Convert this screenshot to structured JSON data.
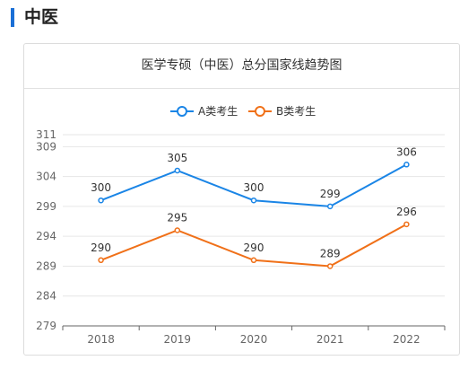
{
  "section": {
    "title": "中医"
  },
  "chart_data": {
    "type": "line",
    "title": "医学专硕（中医）总分国家线趋势图",
    "categories": [
      "2018",
      "2019",
      "2020",
      "2021",
      "2022"
    ],
    "series": [
      {
        "name": "A类考生",
        "color": "#1a85e6",
        "values": [
          300,
          305,
          300,
          299,
          306
        ]
      },
      {
        "name": "B类考生",
        "color": "#f07018",
        "values": [
          290,
          295,
          290,
          289,
          296
        ]
      }
    ],
    "yticks": [
      279,
      284,
      289,
      294,
      299,
      304,
      309,
      311
    ],
    "ylim": [
      279,
      311
    ],
    "legend_position": "top-center",
    "grid": true
  }
}
